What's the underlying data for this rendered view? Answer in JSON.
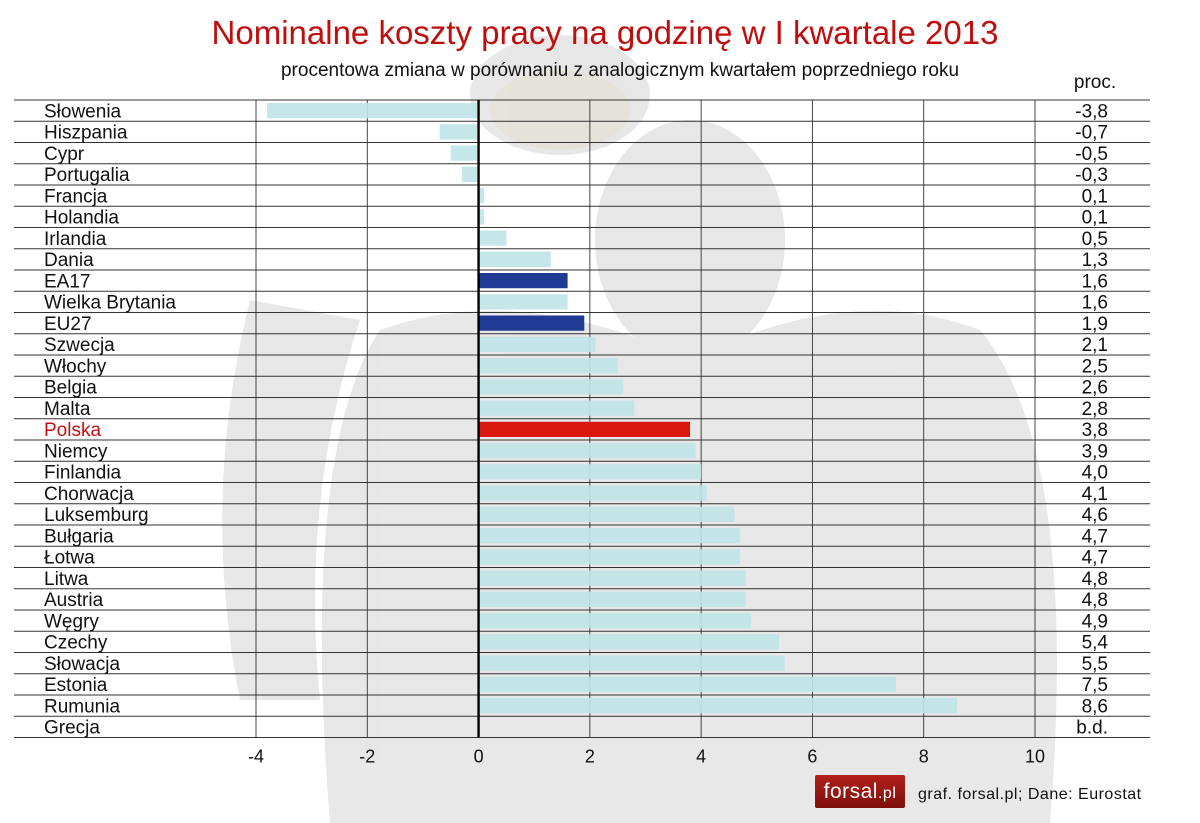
{
  "header": {
    "title": "Nominalne koszty pracy na godzinę w I kwartale 2013",
    "subtitle": "procentowa zmiana w porównaniu z analogicznym kwartałem poprzedniego roku",
    "unit": "proc."
  },
  "footer": {
    "logo_main": "forsal",
    "logo_suffix": ".pl",
    "source": "graf. forsal.pl;  Dane: Eurostat"
  },
  "colors": {
    "bar_default": "#bfe4e8",
    "bar_aggregate": "#1f3a93",
    "bar_highlight": "#d8170f",
    "label_highlight": "#c41010"
  },
  "chart_data": {
    "type": "bar",
    "orientation": "horizontal",
    "categories": [
      "Słowenia",
      "Hiszpania",
      "Cypr",
      "Portugalia",
      "Francja",
      "Holandia",
      "Irlandia",
      "Dania",
      "EA17",
      "Wielka Brytania",
      "EU27",
      "Szwecja",
      "Włochy",
      "Belgia",
      "Malta",
      "Polska",
      "Niemcy",
      "Finlandia",
      "Chorwacja",
      "Luksemburg",
      "Bułgaria",
      "Łotwa",
      "Litwa",
      "Austria",
      "Węgry",
      "Czechy",
      "Słowacja",
      "Estonia",
      "Rumunia",
      "Grecja"
    ],
    "values": [
      -3.8,
      -0.7,
      -0.5,
      -0.3,
      0.1,
      0.1,
      0.5,
      1.3,
      1.6,
      1.6,
      1.9,
      2.1,
      2.5,
      2.6,
      2.8,
      3.8,
      3.9,
      4.0,
      4.1,
      4.6,
      4.7,
      4.7,
      4.8,
      4.8,
      4.9,
      5.4,
      5.5,
      7.5,
      8.6,
      null
    ],
    "value_labels": [
      "-3,8",
      "-0,7",
      "-0,5",
      "-0,3",
      "0,1",
      "0,1",
      "0,5",
      "1,3",
      "1,6",
      "1,6",
      "1,9",
      "2,1",
      "2,5",
      "2,6",
      "2,8",
      "3,8",
      "3,9",
      "4,0",
      "4,1",
      "4,6",
      "4,7",
      "4,7",
      "4,8",
      "4,8",
      "4,9",
      "5,4",
      "5,5",
      "7,5",
      "8,6",
      "b.d."
    ],
    "bar_roles": [
      "default",
      "default",
      "default",
      "default",
      "default",
      "default",
      "default",
      "default",
      "aggregate",
      "default",
      "aggregate",
      "default",
      "default",
      "default",
      "default",
      "highlight",
      "default",
      "default",
      "default",
      "default",
      "default",
      "default",
      "default",
      "default",
      "default",
      "default",
      "default",
      "default",
      "default",
      "default"
    ],
    "xlim": [
      -4,
      10
    ],
    "xticks": [
      -4,
      -2,
      0,
      2,
      4,
      6,
      8,
      10
    ],
    "grid": true
  }
}
